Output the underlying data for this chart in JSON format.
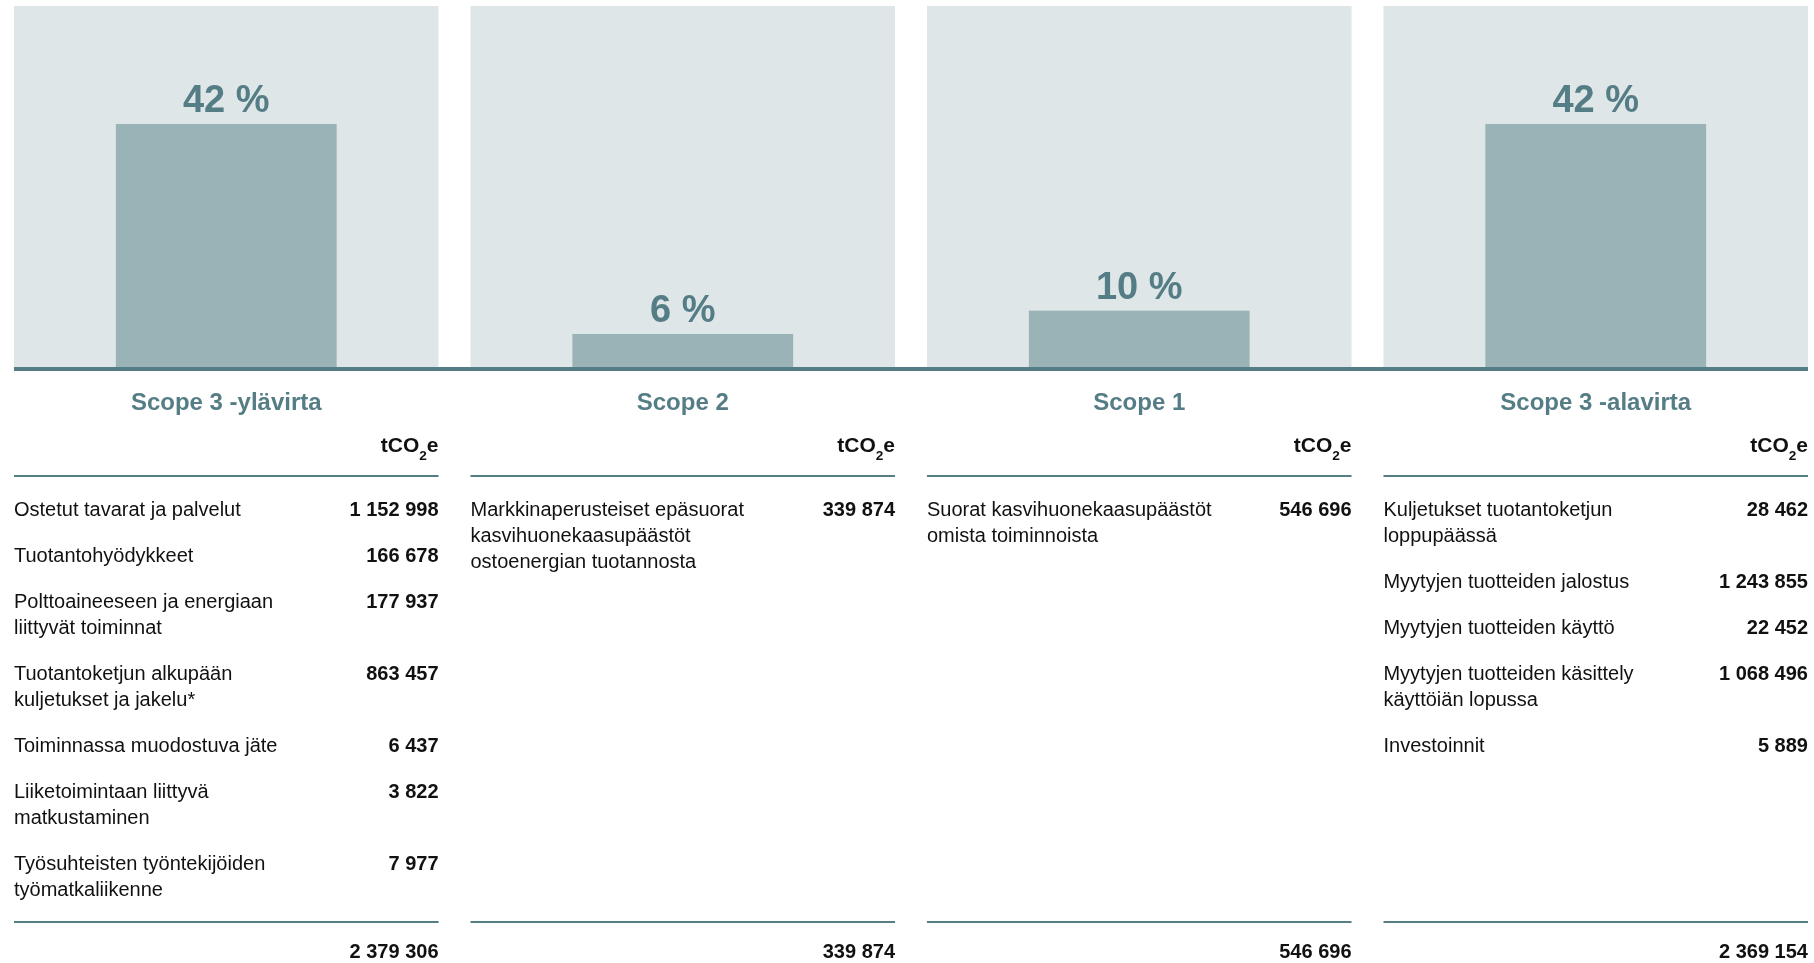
{
  "chart_data": [
    {
      "type": "bar",
      "categories": [
        "Scope 3 -ylävirta",
        "Scope 2",
        "Scope 1",
        "Scope 3 -alavirta"
      ],
      "values": [
        42,
        6,
        10,
        42
      ],
      "value_labels": [
        "42 %",
        "6 %",
        "10 %",
        "42 %"
      ],
      "color": "#9ab3b6",
      "bands": [
        {
          "axis": "x",
          "from": "Scope 3 -ylävirta",
          "to": "Scope 3 -ylävirta",
          "color": "#dee6e8"
        },
        {
          "axis": "x",
          "from": "Scope 2",
          "to": "Scope 2",
          "color": "#dee6e8"
        },
        {
          "axis": "x",
          "from": "Scope 1",
          "to": "Scope 1",
          "color": "#dee6e8"
        },
        {
          "axis": "x",
          "from": "Scope 3 -alavirta",
          "to": "Scope 3 -alavirta",
          "color": "#dee6e8"
        }
      ]
    },
    {
      "type": "other",
      "annotations": [
        "tCO$_{2}$e",
        "Ostetut tavarat ja palvelut",
        "1 152 998",
        "Tuotantohyödykkeet",
        "166 678",
        "Polttoaineeseen ja energiaan liittyvät toiminnat",
        "177 937",
        "Tuotantoketjun alkupään kuljetukset ja jakelu*",
        "863 457",
        "Toiminnassa muodostuva jäte",
        "6 437",
        "Liiketoimintaan liittyvä matkustaminen",
        "3 822",
        "Työsuhteisten työntekijöiden työmatkaliikenne",
        "7 977",
        "2 379 306"
      ]
    },
    {
      "type": "other",
      "annotations": [
        "tCO$_{2}$e",
        "Markkinaperusteiset epäsuorat kasvihuonekaasupäästöt ostoenergian tuotannosta",
        "339 874",
        "339 874"
      ]
    },
    {
      "type": "other",
      "annotations": [
        "tCO$_{2}$e",
        "Suorat kasvihuonekaasupäästöt omista toiminnoista",
        "546 696",
        "546 696"
      ]
    },
    {
      "type": "other",
      "annotations": [
        "tCO$_{2}$e",
        "Kuljetukset tuotantoketjun loppupäässä",
        "28 462",
        "Myytyjen tuotteiden jalostus",
        "1 243 855",
        "Myytyjen tuotteiden käyttö",
        "22 452",
        "Myytyjen tuotteiden käsittely käyttöiän lopussa",
        "1 068 496",
        "Investoinnit",
        "5 889",
        "2 369 154"
      ]
    }
  ]
}
